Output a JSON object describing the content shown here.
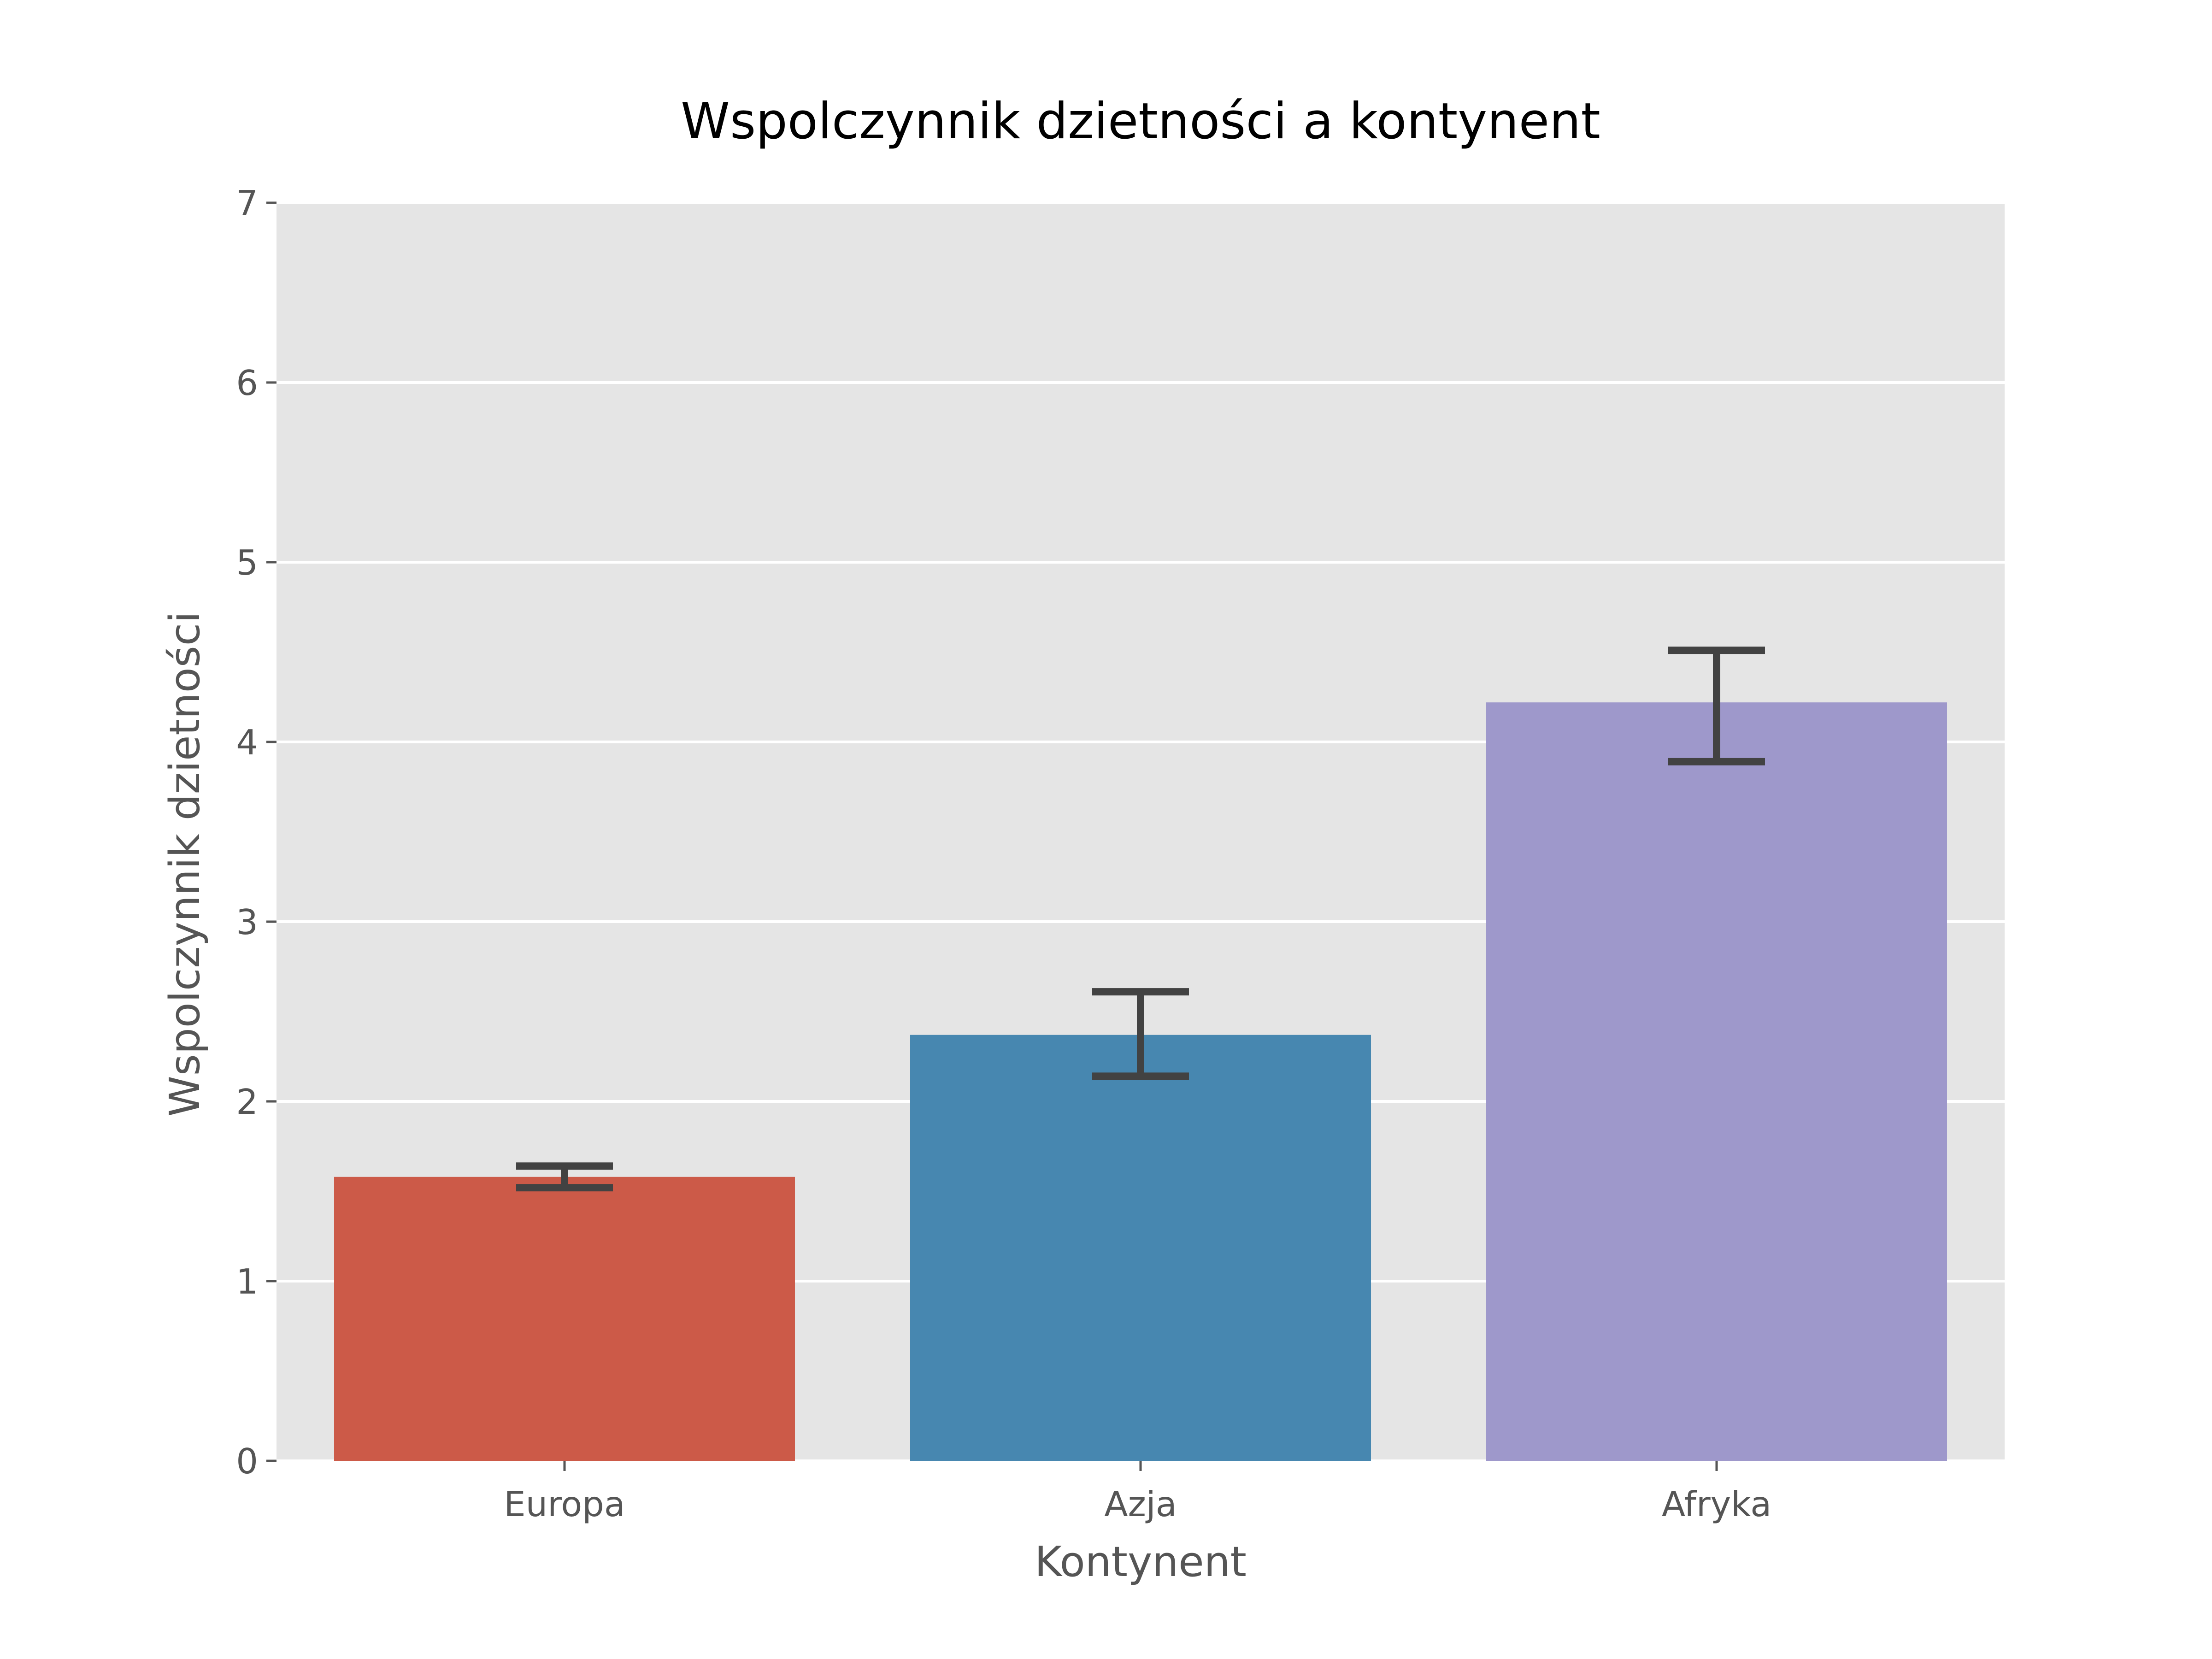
{
  "chart_data": {
    "type": "bar",
    "title": "Wspolczynnik dzietności a kontynent",
    "xlabel": "Kontynent",
    "ylabel": "Wspolczynnik dzietności",
    "categories": [
      "Europa",
      "Azja",
      "Afryka"
    ],
    "values": [
      1.58,
      2.37,
      4.22
    ],
    "error_bars": [
      {
        "low": 1.52,
        "high": 1.64
      },
      {
        "low": 2.14,
        "high": 2.61
      },
      {
        "low": 3.89,
        "high": 4.51
      }
    ],
    "colors": [
      "#cc5a48",
      "#4787b0",
      "#9e98cb"
    ],
    "ylim": [
      0,
      7
    ],
    "yticks": [
      0,
      1,
      2,
      3,
      4,
      5,
      6,
      7
    ],
    "grid": true,
    "background_color": "#e5e5e5",
    "errorbar_color": "#424242"
  }
}
